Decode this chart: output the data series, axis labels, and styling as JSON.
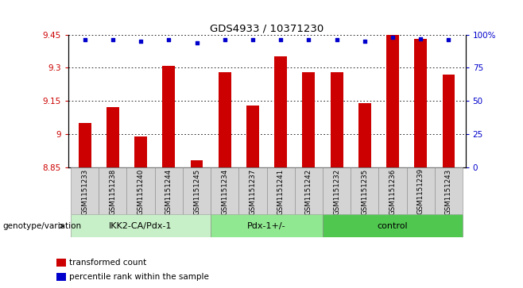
{
  "title": "GDS4933 / 10371230",
  "samples": [
    "GSM1151233",
    "GSM1151238",
    "GSM1151240",
    "GSM1151244",
    "GSM1151245",
    "GSM1151234",
    "GSM1151237",
    "GSM1151241",
    "GSM1151242",
    "GSM1151232",
    "GSM1151235",
    "GSM1151236",
    "GSM1151239",
    "GSM1151243"
  ],
  "bar_values": [
    9.05,
    9.12,
    8.99,
    9.31,
    8.88,
    9.28,
    9.13,
    9.35,
    9.28,
    9.28,
    9.14,
    9.45,
    9.43,
    9.27
  ],
  "percentile_values": [
    96,
    96,
    95,
    96,
    94,
    96,
    96,
    96,
    96,
    96,
    95,
    98,
    97,
    96
  ],
  "groups": [
    {
      "label": "IKK2-CA/Pdx-1",
      "start": 0,
      "end": 5,
      "color": "#c8f0c8"
    },
    {
      "label": "Pdx-1+/-",
      "start": 5,
      "end": 9,
      "color": "#90e890"
    },
    {
      "label": "control",
      "start": 9,
      "end": 14,
      "color": "#50c850"
    }
  ],
  "ylim_left": [
    8.85,
    9.45
  ],
  "ylim_right": [
    0,
    100
  ],
  "yticks_left": [
    8.85,
    9.0,
    9.15,
    9.3,
    9.45
  ],
  "yticks_right": [
    0,
    25,
    50,
    75,
    100
  ],
  "ytick_labels_left": [
    "8.85",
    "9",
    "9.15",
    "9.3",
    "9.45"
  ],
  "ytick_labels_right": [
    "0",
    "25",
    "50",
    "75",
    "100%"
  ],
  "bar_color": "#cc0000",
  "dot_color": "#0000cc",
  "tick_label_color_left": "#cc0000",
  "tick_label_color_right": "#0000cc",
  "legend_items": [
    {
      "color": "#cc0000",
      "label": "transformed count"
    },
    {
      "color": "#0000cc",
      "label": "percentile rank within the sample"
    }
  ],
  "group_label": "genotype/variation",
  "sample_box_color": "#d4d4d4"
}
